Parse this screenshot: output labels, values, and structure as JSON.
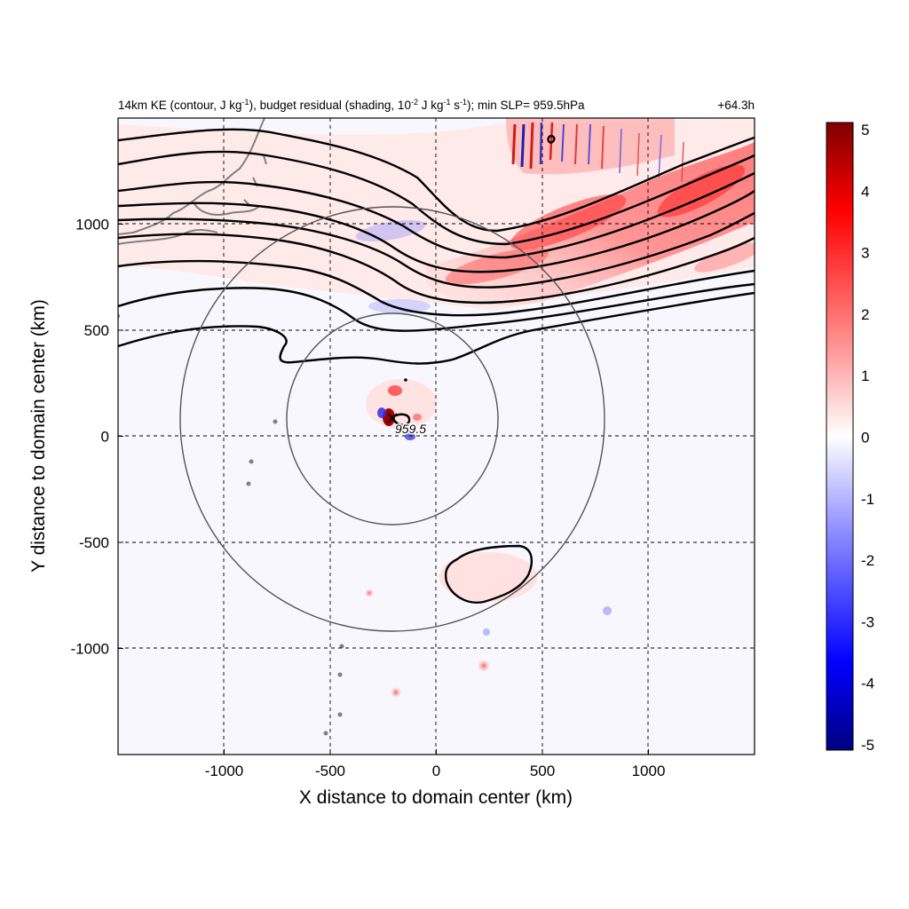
{
  "title": {
    "left_parts": [
      "14km KE (contour, J kg",
      "-1",
      "), budget residual (shading, 10",
      "-2",
      " J kg",
      "-1",
      " s",
      "-1",
      "); min SLP= 959.5hPa"
    ],
    "right": "+64.3h"
  },
  "axes": {
    "xlabel": "X distance to domain center (km)",
    "ylabel": "Y distance to domain center (km)",
    "x_range": [
      -1500,
      1500
    ],
    "y_range": [
      -1500,
      1500
    ],
    "x_ticks": [
      -1000,
      -500,
      0,
      500,
      1000
    ],
    "y_ticks": [
      -1000,
      -500,
      0,
      500,
      1000
    ],
    "x_tick_labels": [
      "-1000",
      "-500",
      "0",
      "500",
      "1000"
    ],
    "y_tick_labels": [
      "-1000",
      "-500",
      "0",
      "500",
      "1000"
    ],
    "grid": "dashed"
  },
  "colorbar": {
    "range": [
      -5,
      5
    ],
    "ticks": [
      "5",
      "4",
      "3",
      "2",
      "1",
      "0",
      "-1",
      "-2",
      "-3",
      "-4",
      "-5"
    ],
    "colors": [
      "#00007f",
      "#0000ff",
      "#8080ff",
      "#ffffff",
      "#ff8080",
      "#ff0000",
      "#7f0000"
    ]
  },
  "storm": {
    "center_km": [
      -205,
      80
    ],
    "min_slp_label": "959.5",
    "circle_radii_km": [
      500,
      1000
    ]
  },
  "chart_data": {
    "type": "heatmap",
    "field_shading": "KE budget residual (10^-2 J kg^-1 s^-1)",
    "contour_field": "14km KE (J kg^-1)",
    "x_range": [
      -1500,
      1500
    ],
    "y_range": [
      -1500,
      1500
    ],
    "color_range": [
      -5,
      5
    ]
  }
}
